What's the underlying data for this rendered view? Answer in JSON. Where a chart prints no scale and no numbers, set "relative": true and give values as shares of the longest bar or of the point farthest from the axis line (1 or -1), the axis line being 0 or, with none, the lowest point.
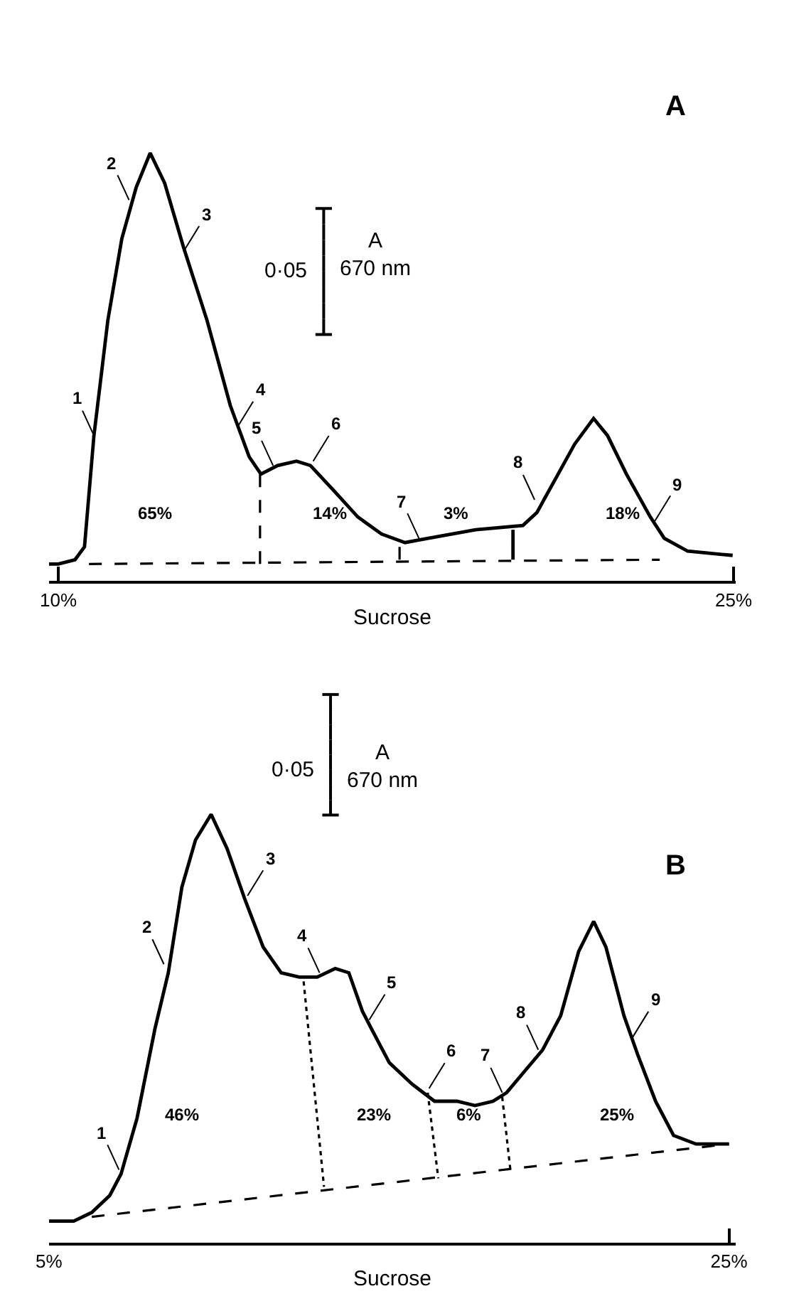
{
  "chart_data": [
    {
      "type": "line",
      "title": "A",
      "xlabel": "Sucrose",
      "relative": true,
      "xlim": [
        9.79,
        25.05
      ],
      "xticks": [
        {
          "value": 10,
          "label": "10%"
        },
        {
          "value": 25,
          "label": "25%"
        }
      ],
      "marker": "none",
      "tick_labels": "x",
      "series": [
        {
          "color": "#000000",
          "line_style": "solid",
          "x": [
            9.79,
            10,
            10.37,
            10.58,
            10.79,
            11.1,
            11.41,
            11.73,
            12.04,
            12.36,
            12.78,
            13.3,
            13.82,
            14.24,
            14.5,
            14.87,
            15.29,
            15.6,
            16.13,
            16.65,
            17.18,
            17.7,
            18.22,
            19.27,
            20.32,
            20.63,
            21.05,
            21.47,
            21.89,
            22.2,
            22.62,
            23.15,
            23.46,
            23.98,
            24.98
          ],
          "values": [
            0.04,
            0.04,
            0.05,
            0.08,
            0.34,
            0.61,
            0.8,
            0.92,
            1,
            0.93,
            0.78,
            0.61,
            0.41,
            0.29,
            0.25,
            0.27,
            0.28,
            0.27,
            0.21,
            0.15,
            0.11,
            0.09,
            0.1,
            0.12,
            0.13,
            0.16,
            0.24,
            0.32,
            0.38,
            0.34,
            0.25,
            0.15,
            0.1,
            0.07,
            0.06
          ]
        },
        {
          "color": "#000000",
          "line_style": "dashed",
          "x": [
            10.68,
            23.36
          ],
          "values": [
            0.04,
            0.05
          ]
        },
        {
          "color": "#000000",
          "line_style": "dashed",
          "x": [
            14.48,
            14.48
          ],
          "values": [
            0.04,
            0.25
          ]
        },
        {
          "color": "#000000",
          "line_style": "dashed",
          "x": [
            17.58,
            17.58
          ],
          "values": [
            0.05,
            0.09
          ]
        },
        {
          "color": "#000000",
          "line_style": "solid",
          "x": [
            20.1,
            20.1
          ],
          "values": [
            0.05,
            0.12
          ]
        }
      ],
      "annotations": [
        "0·05",
        "A\n670 nm",
        {
          "text": "1",
          "x": 10.79,
          "y": 0.34
        },
        {
          "text": "2",
          "x": 11.57,
          "y": 0.89
        },
        {
          "text": "3",
          "x": 12.78,
          "y": 0.77
        },
        {
          "text": "4",
          "x": 13.98,
          "y": 0.36
        },
        {
          "text": "5",
          "x": 14.77,
          "y": 0.27
        },
        {
          "text": "6",
          "x": 15.66,
          "y": 0.28
        },
        {
          "text": "7",
          "x": 18.01,
          "y": 0.1
        },
        {
          "text": "8",
          "x": 20.58,
          "y": 0.19
        },
        {
          "text": "9",
          "x": 23.25,
          "y": 0.14
        },
        "65%",
        "14%",
        "3%",
        "18%"
      ]
    },
    {
      "type": "line",
      "title": "B",
      "xlabel": "Sucrose",
      "relative": true,
      "xlim": [
        5.0,
        25.2
      ],
      "xticks": [
        {
          "value": 5,
          "label": "5%"
        },
        {
          "value": 25,
          "label": "25%"
        }
      ],
      "marker": "none",
      "tick_labels": "x",
      "series": [
        {
          "color": "#000000",
          "line_style": "solid",
          "x": [
            5.0,
            5.73,
            6.26,
            6.79,
            7.12,
            7.59,
            8.12,
            8.51,
            8.91,
            9.31,
            9.77,
            10.24,
            10.77,
            11.3,
            11.83,
            12.36,
            12.89,
            13.42,
            13.82,
            14.22,
            14.48,
            15.01,
            15.68,
            16.34,
            17.0,
            17.53,
            18.06,
            18.46,
            18.99,
            19.52,
            20.05,
            20.58,
            21.02,
            21.38,
            21.91,
            22.31,
            22.84,
            23.37,
            24.03,
            25.0
          ],
          "values": [
            0.05,
            0.05,
            0.07,
            0.11,
            0.16,
            0.29,
            0.5,
            0.63,
            0.83,
            0.94,
            1,
            0.92,
            0.8,
            0.69,
            0.63,
            0.62,
            0.62,
            0.64,
            0.63,
            0.54,
            0.5,
            0.42,
            0.37,
            0.33,
            0.33,
            0.32,
            0.33,
            0.35,
            0.4,
            0.45,
            0.53,
            0.68,
            0.75,
            0.69,
            0.53,
            0.44,
            0.33,
            0.25,
            0.23,
            0.23
          ]
        },
        {
          "color": "#000000",
          "line_style": "dashed",
          "x": [
            6.26,
            25.0
          ],
          "values": [
            0.06,
            0.23
          ]
        },
        {
          "color": "#000000",
          "line_style": "dotted",
          "x": [
            12.49,
            13.09
          ],
          "values": [
            0.61,
            0.13
          ]
        },
        {
          "color": "#000000",
          "line_style": "dotted",
          "x": [
            16.14,
            16.45
          ],
          "values": [
            0.35,
            0.15
          ]
        },
        {
          "color": "#000000",
          "line_style": "dotted",
          "x": [
            18.33,
            18.57
          ],
          "values": [
            0.34,
            0.17
          ]
        }
      ],
      "annotations": [
        "0·05",
        "A\n670 nm",
        {
          "text": "1",
          "x": 7.06,
          "y": 0.17
        },
        {
          "text": "2",
          "x": 8.38,
          "y": 0.65
        },
        {
          "text": "3",
          "x": 10.84,
          "y": 0.81
        },
        {
          "text": "4",
          "x": 12.96,
          "y": 0.63
        },
        {
          "text": "5",
          "x": 14.42,
          "y": 0.52
        },
        {
          "text": "6",
          "x": 16.18,
          "y": 0.36
        },
        {
          "text": "7",
          "x": 18.33,
          "y": 0.35
        },
        {
          "text": "8",
          "x": 19.39,
          "y": 0.45
        },
        {
          "text": "9",
          "x": 22.17,
          "y": 0.48
        },
        "46%",
        "23%",
        "6%",
        "25%"
      ]
    }
  ]
}
